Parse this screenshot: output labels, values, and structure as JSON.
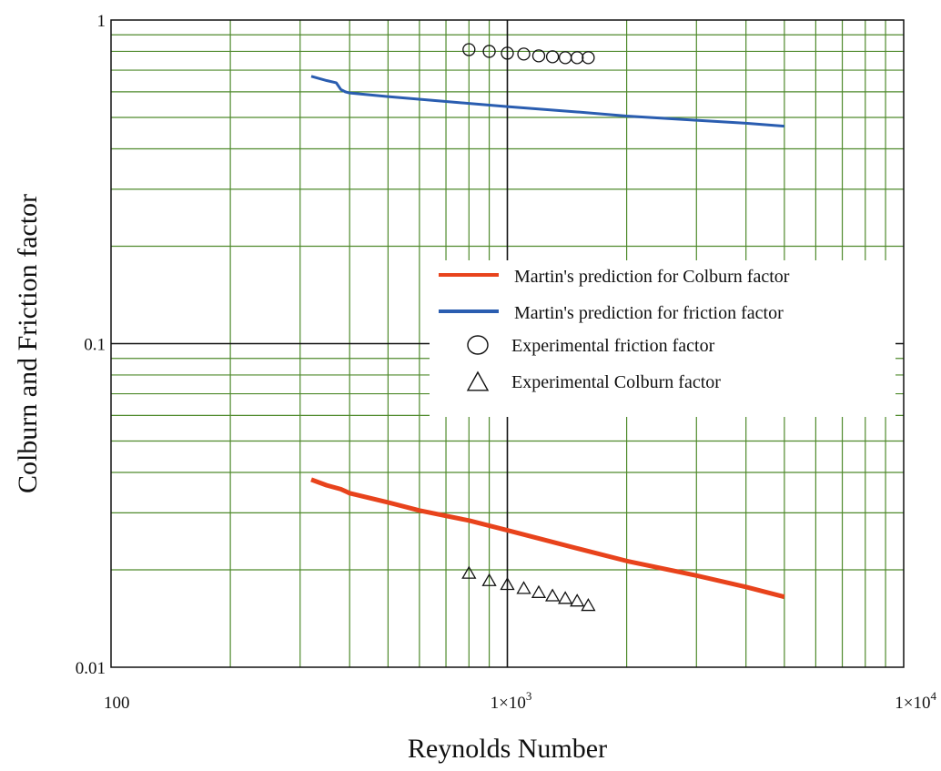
{
  "chart_data": {
    "type": "line",
    "xlabel": "Reynolds Number",
    "ylabel": "Colburn and Friction factor",
    "x_scale": "log",
    "y_scale": "log",
    "xlim": [
      100,
      10000
    ],
    "ylim": [
      0.01,
      1
    ],
    "grid": true,
    "legend_position": "center-right",
    "x_tick_labels": [
      {
        "value": 100,
        "base": "100",
        "sup": ""
      },
      {
        "value": 1000,
        "base": "1×10",
        "sup": "3"
      },
      {
        "value": 10000,
        "base": "1×10",
        "sup": "4"
      }
    ],
    "y_tick_labels": [
      {
        "value": 1,
        "label": "1"
      },
      {
        "value": 0.1,
        "label": "0.1"
      },
      {
        "value": 0.01,
        "label": "0.01"
      }
    ],
    "series": [
      {
        "name": "Martin's prediction for Colburn factor",
        "kind": "line",
        "color": "#e8431c",
        "x": [
          320,
          350,
          380,
          400,
          500,
          600,
          800,
          1000,
          1500,
          2000,
          3000,
          4000,
          5000
        ],
        "y": [
          0.038,
          0.0365,
          0.0355,
          0.0345,
          0.0323,
          0.0305,
          0.0284,
          0.0265,
          0.0233,
          0.0213,
          0.0192,
          0.0177,
          0.0165
        ]
      },
      {
        "name": "Martin's prediction for friction factor",
        "kind": "line",
        "color": "#2a5db0",
        "x": [
          320,
          350,
          370,
          380,
          390,
          400,
          500,
          700,
          1000,
          1500,
          2000,
          3000,
          4000,
          5000
        ],
        "y": [
          0.67,
          0.65,
          0.64,
          0.61,
          0.6,
          0.595,
          0.58,
          0.56,
          0.54,
          0.52,
          0.505,
          0.49,
          0.48,
          0.47
        ]
      },
      {
        "name": "Experimental friction factor",
        "kind": "scatter",
        "marker": "circle",
        "color": "#111111",
        "x": [
          800,
          900,
          1000,
          1100,
          1200,
          1300,
          1400,
          1500,
          1600
        ],
        "y": [
          0.81,
          0.8,
          0.79,
          0.785,
          0.775,
          0.77,
          0.765,
          0.765,
          0.765
        ]
      },
      {
        "name": "Experimental Colburn factor",
        "kind": "scatter",
        "marker": "triangle",
        "color": "#111111",
        "x": [
          800,
          900,
          1000,
          1100,
          1200,
          1300,
          1400,
          1500,
          1600
        ],
        "y": [
          0.0195,
          0.0185,
          0.018,
          0.0175,
          0.017,
          0.0166,
          0.0163,
          0.016,
          0.0155
        ]
      }
    ]
  }
}
